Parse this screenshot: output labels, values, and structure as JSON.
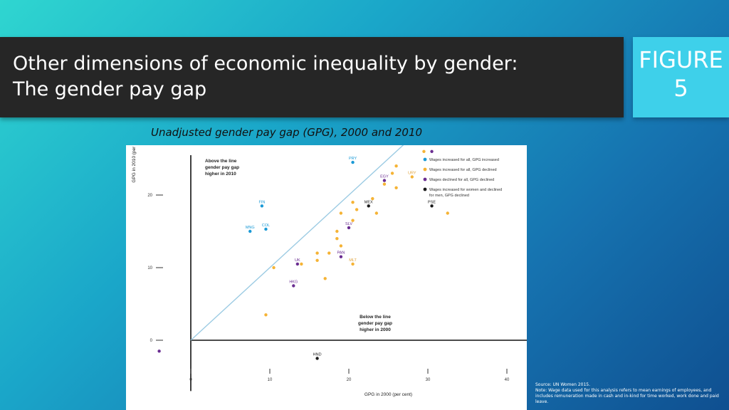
{
  "header": {
    "title_line1": "Other dimensions of economic inequality by gender:",
    "title_line2": "The gender pay gap",
    "figure_label": "FIGURE",
    "figure_number": "5"
  },
  "subtitle": "Unadjusted gender pay gap (GPG), 2000 and 2010",
  "source": {
    "line1": "Source: UN Women 2015.",
    "line2": "Note: Wage data used for this analysis refers to mean earnings of employees, and includes remuneration made in cash and in-kind for time worked, work done and paid leave."
  },
  "colors": {
    "increased_gpg_increased": "#1b9ad6",
    "increased_gpg_declined": "#f5b335",
    "declined_gpg_declined": "#6a2d91",
    "women_increased_men_declined": "#1a1a1a",
    "diagonal": "#9ccbe3"
  },
  "chart_data": {
    "type": "scatter",
    "xlabel": "GPG in 2000 (per cent)",
    "ylabel": "GPG in 2010 (per cent)",
    "xlim": [
      -5,
      55
    ],
    "ylim": [
      -8,
      52
    ],
    "xticks": [
      0,
      10,
      20,
      30,
      40,
      50
    ],
    "yticks": [
      0,
      10,
      20,
      30,
      40,
      50
    ],
    "annotations": {
      "above": [
        "Above the line",
        "gender pay gap",
        "higher in 2010"
      ],
      "below": [
        "Below the line",
        "gender pay gap",
        "higher in 2000"
      ]
    },
    "legend": {
      "position": "top-right",
      "entries": [
        {
          "key": "blue",
          "lines": [
            "Wages increased for all, GPG increased"
          ]
        },
        {
          "key": "orange",
          "lines": [
            "Wages increased for all, GPG declined"
          ]
        },
        {
          "key": "purple",
          "lines": [
            "Wages declined for all, GPG declined"
          ]
        },
        {
          "key": "black",
          "lines": [
            "Wages increased for women and declined",
            "for men, GPG declined"
          ]
        }
      ]
    },
    "series": [
      {
        "key": "blue",
        "points": [
          {
            "x": 33.5,
            "y": 35.5,
            "label": "AUS"
          },
          {
            "x": 20.5,
            "y": 24.5,
            "label": "PRY"
          },
          {
            "x": 9,
            "y": 18.5,
            "label": "FIN"
          },
          {
            "x": 9.5,
            "y": 15.3,
            "label": "COL"
          },
          {
            "x": 7.5,
            "y": 15,
            "label": "MNG"
          }
        ]
      },
      {
        "key": "orange",
        "points": [
          {
            "x": 43,
            "y": 40.5,
            "label": "BOL"
          },
          {
            "x": 30,
            "y": 27.5,
            "label": "SWE"
          },
          {
            "x": 28,
            "y": 22.5,
            "label": "URY"
          },
          {
            "x": 20.5,
            "y": 10.5,
            "label": "MLT"
          },
          {
            "x": 54.5,
            "y": 45
          },
          {
            "x": 45.5,
            "y": 42.5
          },
          {
            "x": 43,
            "y": 36.5
          },
          {
            "x": 48.5,
            "y": 36
          },
          {
            "x": 35,
            "y": 35.5
          },
          {
            "x": 34.5,
            "y": 34
          },
          {
            "x": 36.5,
            "y": 32.5
          },
          {
            "x": 32,
            "y": 30.5
          },
          {
            "x": 29.5,
            "y": 26
          },
          {
            "x": 26,
            "y": 24
          },
          {
            "x": 25.5,
            "y": 23
          },
          {
            "x": 24.5,
            "y": 21.5
          },
          {
            "x": 26,
            "y": 21
          },
          {
            "x": 23,
            "y": 19.5
          },
          {
            "x": 20.5,
            "y": 19
          },
          {
            "x": 19,
            "y": 17.5
          },
          {
            "x": 21,
            "y": 18
          },
          {
            "x": 20.5,
            "y": 16.5
          },
          {
            "x": 23.5,
            "y": 17.5
          },
          {
            "x": 32.5,
            "y": 17.5
          },
          {
            "x": 18.5,
            "y": 15
          },
          {
            "x": 18.5,
            "y": 14
          },
          {
            "x": 19,
            "y": 13
          },
          {
            "x": 16,
            "y": 12
          },
          {
            "x": 17.5,
            "y": 12
          },
          {
            "x": 16,
            "y": 11
          },
          {
            "x": 14,
            "y": 10.5
          },
          {
            "x": 17,
            "y": 8.5
          },
          {
            "x": 10.5,
            "y": 10
          },
          {
            "x": 9.5,
            "y": 3.5
          }
        ]
      },
      {
        "key": "purple",
        "points": [
          {
            "x": 24.5,
            "y": 22,
            "label": "EGY"
          },
          {
            "x": 20,
            "y": 15.5,
            "label": "SLV"
          },
          {
            "x": 19,
            "y": 11.5,
            "label": "PAN"
          },
          {
            "x": 13.5,
            "y": 10.5,
            "label": "UK"
          },
          {
            "x": 13,
            "y": 7.5,
            "label": "HKG"
          },
          {
            "x": 30.5,
            "y": 26
          },
          {
            "x": -4,
            "y": -1.5
          }
        ]
      },
      {
        "key": "black",
        "points": [
          {
            "x": 41,
            "y": 38.5,
            "label": "AUT"
          },
          {
            "x": 38.5,
            "y": 34,
            "label": "ISR"
          },
          {
            "x": 36.5,
            "y": 32.5,
            "label": "JPN"
          },
          {
            "x": 22.5,
            "y": 18.5,
            "label": "MEX"
          },
          {
            "x": 30.5,
            "y": 18.5,
            "label": "PSE"
          },
          {
            "x": 16,
            "y": -2.5,
            "label": "HND"
          }
        ]
      }
    ]
  }
}
